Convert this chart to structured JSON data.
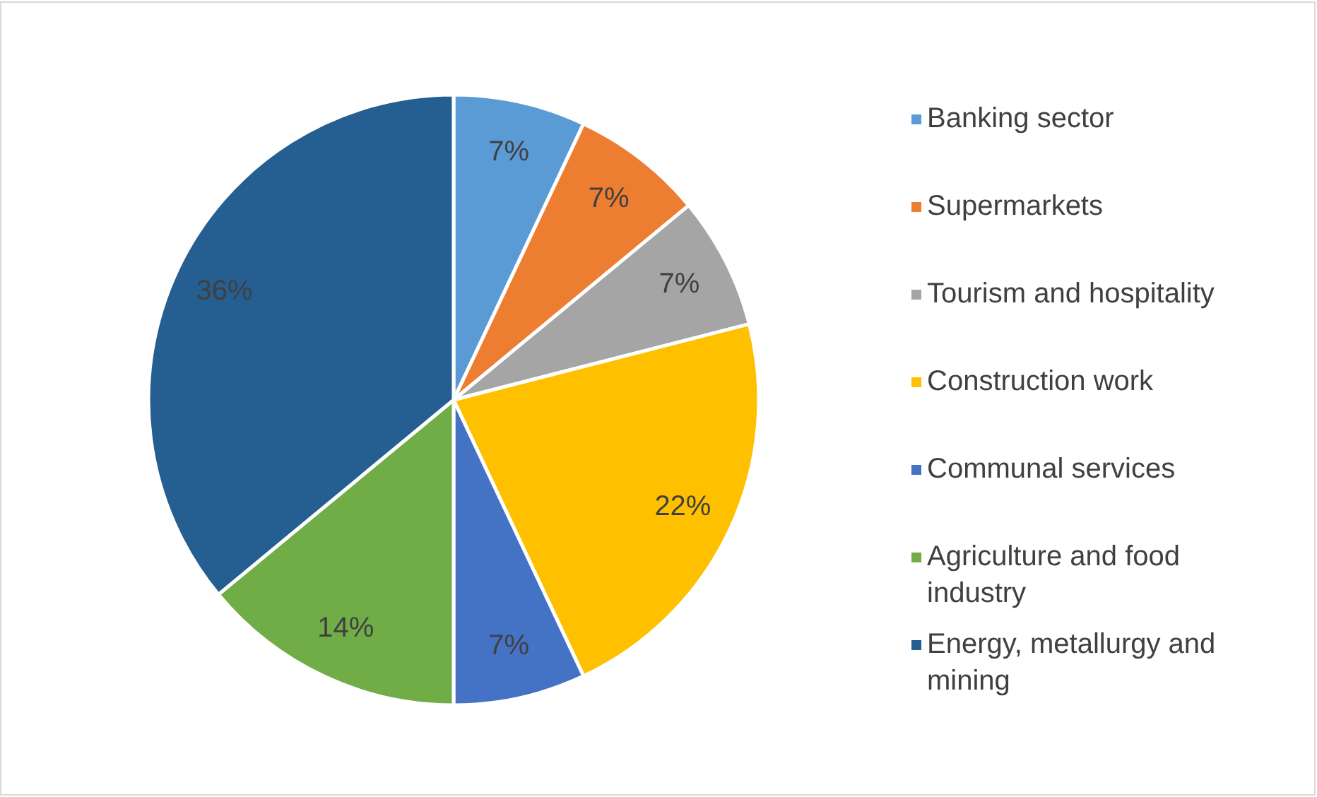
{
  "chart_data": {
    "type": "pie",
    "categories": [
      "Banking sector",
      "Supermarkets",
      "Tourism and hospitality",
      "Construction work",
      "Communal services",
      "Agriculture and food industry",
      "Energy, metallurgy and mining"
    ],
    "values": [
      7,
      7,
      7,
      22,
      7,
      14,
      36
    ],
    "colors": [
      "#5b9bd5",
      "#ed7d31",
      "#a5a5a5",
      "#ffc000",
      "#4472c4",
      "#70ad47",
      "#255e91"
    ],
    "value_labels": [
      "7%",
      "7%",
      "7%",
      "22%",
      "7%",
      "14%",
      "36%"
    ],
    "legend": "right"
  }
}
